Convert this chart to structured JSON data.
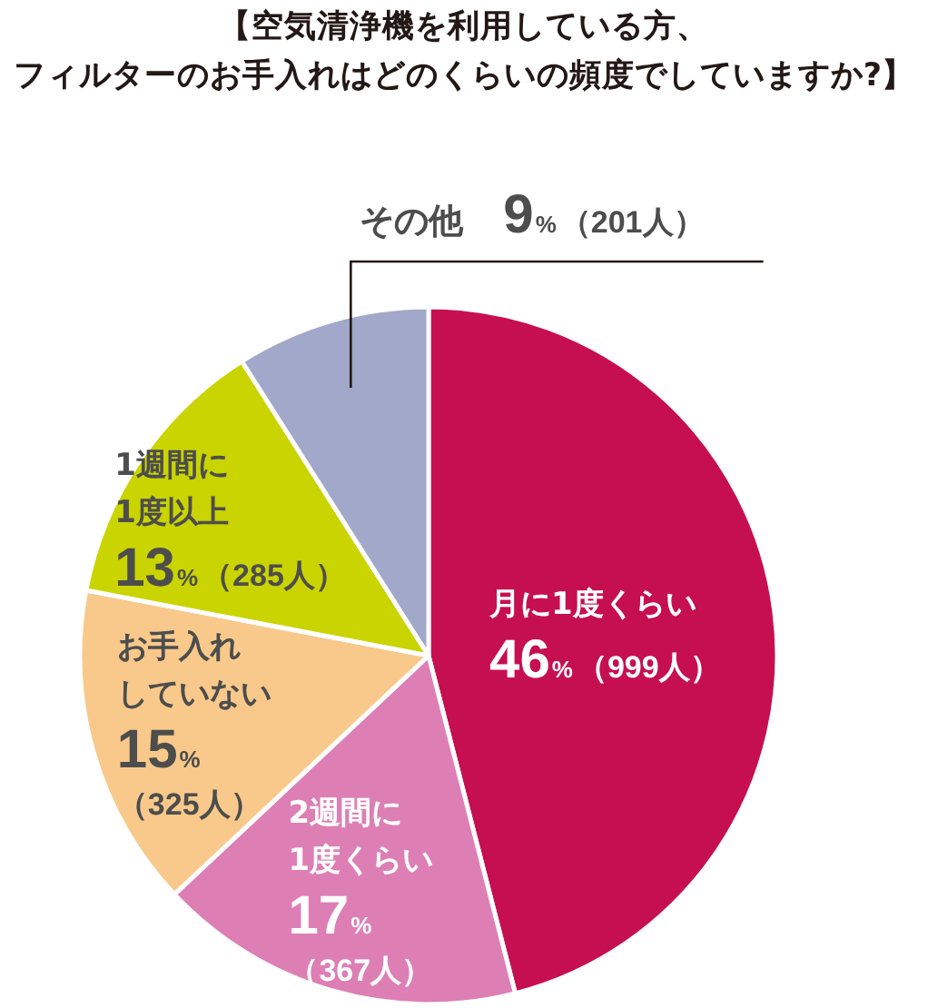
{
  "chart_data": {
    "type": "pie",
    "title": "【空気清浄機を利用している方、フィルターのお手入れはどのくらいの頻度でしていますか?】",
    "categories": [
      "月に1度くらい",
      "2週間に1度くらい",
      "お手入れしていない",
      "1週間に1度以上",
      "その他"
    ],
    "values": [
      46,
      17,
      15,
      13,
      9
    ],
    "colors": [
      "#c60f51",
      "#dd7fb5",
      "#f8c98b",
      "#c9d400",
      "#a1a8c9"
    ],
    "value_labels": [
      "46%（999人）",
      "17%\n（367人）",
      "15%\n（325人）",
      "13%（285人）",
      "9%（201人）"
    ]
  }
}
